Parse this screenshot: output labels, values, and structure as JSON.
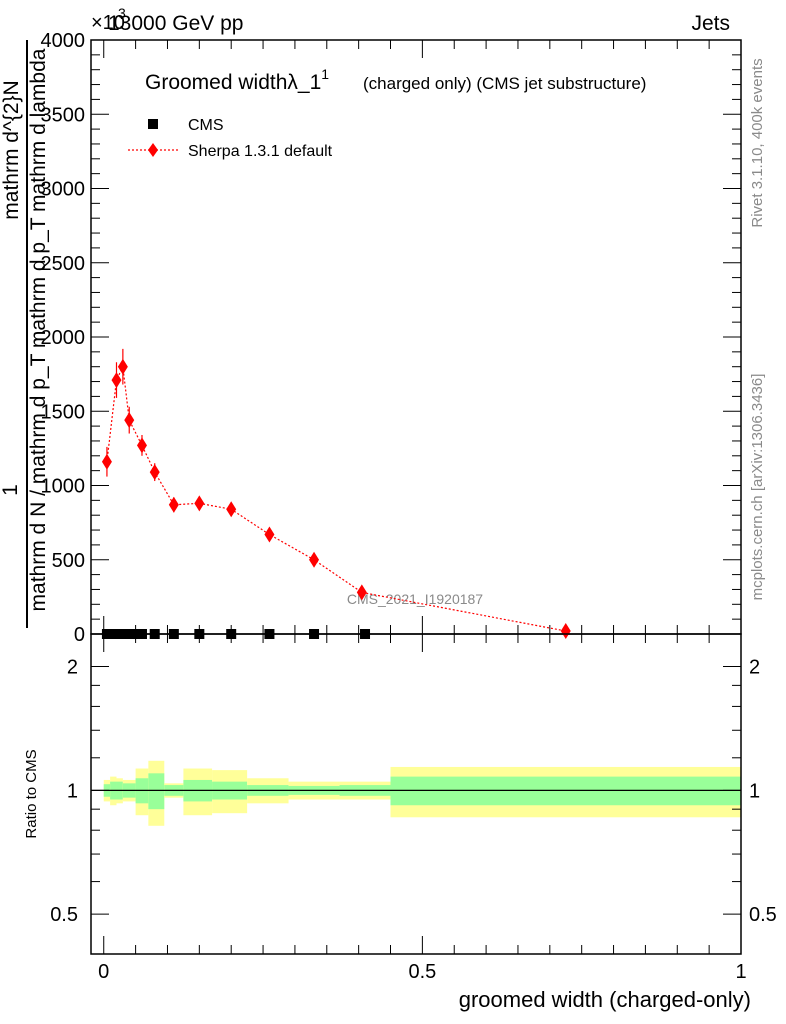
{
  "header": {
    "energy": "13000 GeV pp",
    "category": "Jets",
    "exponent_prefix": "×10",
    "exponent": "3"
  },
  "side_labels": {
    "rivet": "Rivet 3.1.10,  400k events",
    "mcplots": "mcplots.cern.ch [arXiv:1306.3436]"
  },
  "watermark": "CMS_2021_I1920187",
  "chart_data": [
    {
      "type": "scatter",
      "title": "Groomed widthλ_1",
      "title_superscript": "1",
      "subtitle": "(charged only) (CMS jet substructure)",
      "ylabel": {
        "prefix": "1",
        "numerator": "mathrm d^{2}N",
        "denominator": "mathrm d N / mathrm d p_T mathrm d p_T mathrm d lambda"
      },
      "xlim": [
        -0.02,
        1.0
      ],
      "ylim": [
        0,
        4.0
      ],
      "y_scale_note": "values in units of 10^3",
      "yticks": [
        0,
        500,
        1000,
        1500,
        2000,
        2500,
        3000,
        3500,
        4000
      ],
      "ytick_labels": [
        "0",
        "500",
        "1000",
        "1500",
        "2000",
        "2500",
        "3000",
        "3500",
        "4000"
      ],
      "legend": {
        "placement": "top-left",
        "entries": [
          {
            "label": "CMS",
            "marker": "square",
            "color": "#000000"
          },
          {
            "label": "Sherpa 1.3.1 default",
            "marker": "diamond",
            "color": "#ff0000",
            "line": "dotted"
          }
        ]
      },
      "series": [
        {
          "name": "CMS",
          "x": [
            0.005,
            0.015,
            0.025,
            0.035,
            0.045,
            0.06,
            0.08,
            0.11,
            0.15,
            0.2,
            0.26,
            0.33,
            0.41
          ],
          "y": [
            0,
            0,
            0,
            0,
            0,
            0,
            0,
            0,
            0,
            0,
            0,
            0,
            0
          ]
        },
        {
          "name": "Sherpa 1.3.1 default",
          "x": [
            0.005,
            0.02,
            0.03,
            0.04,
            0.06,
            0.08,
            0.11,
            0.15,
            0.2,
            0.26,
            0.33,
            0.405,
            0.725
          ],
          "y": [
            1.16,
            1.71,
            1.8,
            1.44,
            1.27,
            1.09,
            0.87,
            0.88,
            0.84,
            0.67,
            0.5,
            0.28,
            0.02
          ],
          "yerr": [
            0.1,
            0.12,
            0.12,
            0.09,
            0.07,
            0.06,
            0.05,
            0.04,
            0.03,
            0.025,
            0.02,
            0.015,
            0.01
          ]
        }
      ]
    },
    {
      "type": "ratio",
      "ylabel": "Ratio to CMS",
      "ylim": [
        0.4,
        2.4
      ],
      "y_scale": "log",
      "yticks": [
        0.5,
        1,
        2
      ],
      "ytick_labels": [
        "0.5",
        "1",
        "2"
      ],
      "xticks": [
        0,
        0.5,
        1
      ],
      "xtick_labels": [
        "0",
        "0.5",
        "1"
      ],
      "xlabel": "groomed width (charged-only)",
      "bands": [
        {
          "x0": 0.0,
          "x1": 0.01,
          "inner": 0.035,
          "outer": 0.06
        },
        {
          "x0": 0.01,
          "x1": 0.02,
          "inner": 0.05,
          "outer": 0.08
        },
        {
          "x0": 0.02,
          "x1": 0.03,
          "inner": 0.05,
          "outer": 0.07
        },
        {
          "x0": 0.03,
          "x1": 0.05,
          "inner": 0.04,
          "outer": 0.06
        },
        {
          "x0": 0.05,
          "x1": 0.07,
          "inner": 0.07,
          "outer": 0.13
        },
        {
          "x0": 0.07,
          "x1": 0.095,
          "inner": 0.1,
          "outer": 0.18
        },
        {
          "x0": 0.095,
          "x1": 0.125,
          "inner": 0.03,
          "outer": 0.04
        },
        {
          "x0": 0.125,
          "x1": 0.17,
          "inner": 0.06,
          "outer": 0.13
        },
        {
          "x0": 0.17,
          "x1": 0.225,
          "inner": 0.05,
          "outer": 0.12
        },
        {
          "x0": 0.225,
          "x1": 0.29,
          "inner": 0.03,
          "outer": 0.07
        },
        {
          "x0": 0.29,
          "x1": 0.37,
          "inner": 0.025,
          "outer": 0.05
        },
        {
          "x0": 0.37,
          "x1": 0.45,
          "inner": 0.03,
          "outer": 0.05
        },
        {
          "x0": 0.45,
          "x1": 1.0,
          "inner": 0.08,
          "outer": 0.14
        }
      ],
      "band_colors": {
        "inner": "#99ff99",
        "outer": "#ffff99"
      },
      "reference_line": 1
    }
  ]
}
